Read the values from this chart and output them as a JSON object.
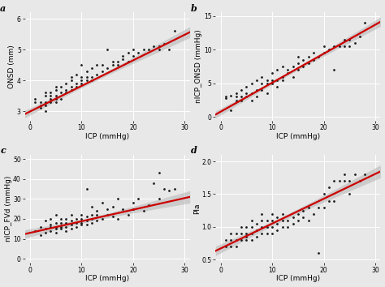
{
  "background_color": "#e8e8e8",
  "grid_color": "#ffffff",
  "point_color": "#1a1a1a",
  "line_color": "#cc0000",
  "ci_color": "#b0b0b0",
  "ci_alpha": 0.5,
  "panel_label_fontsize": 8,
  "axis_label_fontsize": 6.5,
  "tick_fontsize": 5.5,
  "point_size": 4,
  "line_width": 1.6,
  "subplots": [
    {
      "label": "a",
      "xlabel": "ICP (mmHg)",
      "ylabel": "ONSD (mm)",
      "xlim": [
        -1,
        31
      ],
      "ylim": [
        2.7,
        6.2
      ],
      "yticks": [
        3,
        4,
        5,
        6
      ],
      "xticks": [
        0,
        10,
        20,
        30
      ],
      "slope": 0.083,
      "intercept": 2.99,
      "x_data": [
        1,
        1,
        2,
        2,
        2,
        3,
        3,
        3,
        3,
        3,
        4,
        4,
        4,
        4,
        5,
        5,
        5,
        5,
        5,
        6,
        6,
        6,
        7,
        7,
        7,
        8,
        8,
        8,
        8,
        9,
        9,
        9,
        10,
        10,
        10,
        10,
        11,
        11,
        11,
        12,
        12,
        12,
        13,
        13,
        14,
        14,
        15,
        15,
        16,
        16,
        17,
        17,
        18,
        18,
        19,
        19,
        20,
        20,
        21,
        22,
        23,
        24,
        25,
        25,
        26,
        27,
        28
      ],
      "y_data": [
        3.3,
        3.4,
        3.1,
        3.2,
        3.3,
        3.0,
        3.2,
        3.3,
        3.5,
        3.6,
        3.3,
        3.4,
        3.5,
        3.6,
        3.3,
        3.4,
        3.5,
        3.7,
        3.8,
        3.4,
        3.6,
        3.8,
        3.6,
        3.7,
        3.9,
        3.7,
        3.8,
        4.0,
        4.1,
        3.8,
        3.9,
        4.2,
        3.9,
        4.0,
        4.1,
        4.5,
        4.0,
        4.1,
        4.3,
        4.0,
        4.1,
        4.4,
        4.2,
        4.5,
        4.3,
        4.5,
        4.4,
        5.0,
        4.5,
        4.6,
        4.5,
        4.6,
        4.7,
        4.8,
        4.6,
        4.9,
        4.8,
        5.0,
        4.9,
        5.0,
        5.0,
        5.1,
        5.0,
        5.1,
        5.2,
        5.0,
        5.6
      ]
    },
    {
      "label": "b",
      "xlabel": "ICP (mmHg)",
      "ylabel": "nICP_ONSD (mmHg)",
      "xlim": [
        -1,
        31
      ],
      "ylim": [
        -0.5,
        15.5
      ],
      "yticks": [
        0,
        5,
        10,
        15
      ],
      "xticks": [
        0,
        10,
        20,
        30
      ],
      "slope": 0.43,
      "intercept": 0.8,
      "x_data": [
        1,
        1,
        2,
        2,
        3,
        3,
        3,
        4,
        4,
        4,
        5,
        5,
        5,
        6,
        6,
        6,
        7,
        7,
        7,
        8,
        8,
        8,
        9,
        9,
        9,
        10,
        10,
        10,
        11,
        11,
        11,
        12,
        12,
        12,
        13,
        13,
        14,
        14,
        15,
        15,
        15,
        16,
        16,
        17,
        17,
        18,
        18,
        19,
        20,
        20,
        21,
        22,
        22,
        23,
        24,
        24,
        25,
        25,
        26,
        27,
        28
      ],
      "y_data": [
        2.8,
        3.0,
        1.0,
        3.2,
        2.5,
        3.0,
        3.5,
        2.5,
        3.0,
        4.0,
        3.0,
        3.5,
        4.5,
        2.5,
        3.5,
        5.0,
        3.0,
        4.0,
        5.5,
        4.0,
        5.0,
        6.0,
        5.0,
        5.5,
        3.5,
        5.0,
        5.5,
        6.5,
        4.5,
        5.5,
        7.0,
        5.5,
        6.0,
        7.5,
        6.5,
        7.0,
        6.0,
        7.5,
        7.0,
        8.0,
        9.0,
        7.5,
        8.5,
        8.0,
        9.0,
        8.5,
        9.5,
        9.0,
        9.5,
        10.5,
        10.0,
        10.5,
        7.0,
        10.5,
        10.5,
        11.5,
        10.5,
        11.5,
        11.0,
        12.0,
        14.0
      ]
    },
    {
      "label": "c",
      "xlabel": "ICP (mmHg)",
      "ylabel": "nICP_FVd (mmHg)",
      "xlim": [
        -1,
        31
      ],
      "ylim": [
        -2,
        52
      ],
      "yticks": [
        0,
        10,
        20,
        30,
        40,
        50
      ],
      "xticks": [
        0,
        10,
        20,
        30
      ],
      "slope": 0.58,
      "intercept": 13.0,
      "x_data": [
        1,
        2,
        2,
        3,
        3,
        3,
        4,
        4,
        4,
        4,
        5,
        5,
        5,
        5,
        5,
        6,
        6,
        6,
        6,
        7,
        7,
        7,
        7,
        8,
        8,
        8,
        8,
        9,
        9,
        9,
        10,
        10,
        10,
        10,
        11,
        11,
        11,
        11,
        12,
        12,
        12,
        12,
        13,
        13,
        13,
        14,
        14,
        15,
        15,
        16,
        16,
        17,
        17,
        18,
        19,
        20,
        20,
        21,
        22,
        23,
        24,
        25,
        25,
        26,
        27,
        28
      ],
      "y_data": [
        14,
        12,
        16,
        13,
        15,
        19,
        14,
        16,
        17,
        20,
        13,
        15,
        16,
        18,
        22,
        15,
        16,
        18,
        20,
        14,
        16,
        18,
        20,
        15,
        17,
        19,
        22,
        16,
        18,
        20,
        17,
        18,
        20,
        22,
        17,
        19,
        21,
        35,
        18,
        20,
        22,
        26,
        19,
        22,
        24,
        20,
        28,
        22,
        25,
        21,
        26,
        20,
        30,
        25,
        22,
        25,
        28,
        30,
        24,
        27,
        38,
        30,
        43,
        35,
        34,
        35
      ]
    },
    {
      "label": "d",
      "xlabel": "ICP (mmHg)",
      "ylabel": "PIa",
      "xlim": [
        -1,
        31
      ],
      "ylim": [
        0.45,
        2.1
      ],
      "yticks": [
        0.5,
        1.0,
        1.5,
        2.0
      ],
      "xticks": [
        0,
        10,
        20,
        30
      ],
      "slope": 0.038,
      "intercept": 0.67,
      "x_data": [
        1,
        1,
        2,
        2,
        2,
        3,
        3,
        3,
        4,
        4,
        4,
        5,
        5,
        5,
        5,
        6,
        6,
        6,
        6,
        7,
        7,
        7,
        8,
        8,
        8,
        8,
        9,
        9,
        9,
        10,
        10,
        10,
        10,
        11,
        11,
        11,
        12,
        12,
        12,
        13,
        13,
        14,
        14,
        15,
        15,
        16,
        16,
        17,
        17,
        18,
        19,
        19,
        20,
        20,
        21,
        21,
        22,
        22,
        23,
        24,
        24,
        25,
        25,
        26,
        27,
        28
      ],
      "y_data": [
        0.7,
        0.8,
        0.7,
        0.8,
        0.9,
        0.7,
        0.8,
        0.9,
        0.8,
        0.9,
        1.0,
        0.8,
        0.85,
        0.9,
        1.0,
        0.8,
        0.9,
        1.0,
        1.1,
        0.85,
        0.95,
        1.05,
        0.9,
        1.0,
        1.1,
        1.2,
        0.9,
        1.0,
        1.1,
        0.9,
        1.0,
        1.1,
        1.2,
        0.95,
        1.05,
        1.15,
        1.0,
        1.1,
        1.2,
        1.0,
        1.1,
        1.05,
        1.15,
        1.1,
        1.2,
        1.15,
        1.25,
        1.1,
        1.3,
        1.2,
        0.6,
        1.3,
        1.3,
        1.5,
        1.4,
        1.6,
        1.4,
        1.7,
        1.7,
        1.7,
        1.8,
        1.5,
        1.7,
        1.8,
        1.7,
        1.8
      ]
    }
  ]
}
